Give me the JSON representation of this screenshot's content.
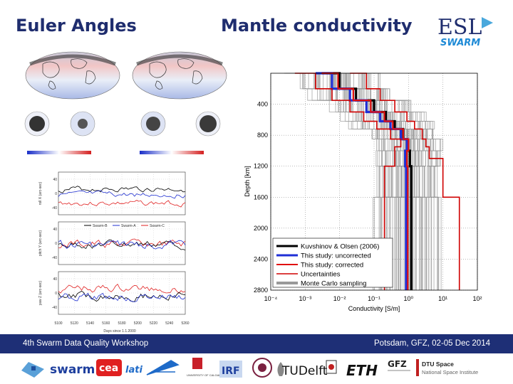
{
  "slide": {
    "left_title": "Euler Angles",
    "right_title": "Mantle conductivity",
    "logo_top": "ESL",
    "logo_bottom": "SWARM"
  },
  "timeseries": {
    "legend": [
      "Swarm-B",
      "Swarm-A",
      "Swarm-C"
    ],
    "xlabel": "Days since 1.1.2000",
    "xticks": [
      "5100",
      "5120",
      "5140",
      "5160",
      "5180",
      "5200",
      "5220",
      "5240",
      "5260"
    ],
    "panels": [
      {
        "ylabel": "roll X (arc-sec)",
        "yticks": [
          "40",
          "0",
          "-40"
        ]
      },
      {
        "ylabel": "pitch Y (arc-sec)",
        "yticks": [
          "40",
          "0",
          "-40"
        ]
      },
      {
        "ylabel": "yaw Z (arc-sec)",
        "yticks": [
          "40",
          "0",
          "-40"
        ]
      }
    ]
  },
  "chart_data": {
    "type": "line",
    "xlabel": "Conductivity [S/m]",
    "ylabel": "Depth [km]",
    "xscale": "log",
    "xlim": [
      0.0001,
      100
    ],
    "xtick_labels": [
      "10⁻⁴",
      "10⁻³",
      "10⁻²",
      "10⁻¹",
      "10⁰",
      "10¹",
      "10²"
    ],
    "ylim": [
      0,
      2800
    ],
    "yticks": [
      400,
      800,
      1200,
      1600,
      2000,
      2400,
      2800
    ],
    "legend_position": "bottom-left",
    "series": [
      {
        "name": "Kuvshinov & Olsen (2006)",
        "color": "#000000",
        "x": [
          0.003,
          0.01,
          0.03,
          0.1,
          0.22,
          0.4,
          0.7,
          0.9,
          1.1,
          1.2,
          1.2
        ],
        "y": [
          0,
          200,
          350,
          500,
          620,
          720,
          850,
          1000,
          1200,
          1600,
          2800
        ]
      },
      {
        "name": "This study: uncorrected",
        "color": "#1f2fd6",
        "x": [
          0.002,
          0.006,
          0.02,
          0.06,
          0.15,
          0.3,
          0.6,
          0.9,
          0.8,
          0.85,
          0.85
        ],
        "y": [
          0,
          200,
          350,
          500,
          620,
          720,
          850,
          1000,
          1200,
          1600,
          2800
        ]
      },
      {
        "name": "This study: corrected",
        "color": "#e01010",
        "x": [
          0.003,
          0.009,
          0.025,
          0.08,
          0.2,
          0.35,
          0.7,
          1.0,
          0.9,
          0.95,
          0.95
        ],
        "y": [
          0,
          200,
          350,
          500,
          620,
          720,
          850,
          1000,
          1200,
          1600,
          2800
        ]
      },
      {
        "name": "Uncertainties",
        "color": "#d00000",
        "x": [
          0.02,
          0.06,
          0.15,
          0.4,
          0.9,
          1.5,
          2.5,
          3.2,
          4,
          10,
          30,
          30
        ],
        "y": [
          0,
          200,
          350,
          500,
          620,
          720,
          850,
          950,
          1100,
          1600,
          2200,
          2800
        ]
      },
      {
        "name": "Uncertainties",
        "color": "#d00000",
        "x": [
          0.0005,
          0.002,
          0.006,
          0.02,
          0.05,
          0.12,
          0.3,
          0.6,
          0.4,
          0.2,
          0.2
        ],
        "y": [
          0,
          200,
          350,
          500,
          620,
          720,
          850,
          950,
          1200,
          1800,
          2800
        ]
      },
      {
        "name": "Monte Carlo sampling",
        "color": "#999999",
        "x": [],
        "y": []
      }
    ]
  },
  "footer": {
    "left": "4th Swarm Data Quality Workshop",
    "right": "Potsdam, GFZ, 02-05 Dec 2014"
  },
  "partners": {
    "swarm": "swarm",
    "cea": "cea",
    "lati": "lati",
    "calgary": "UNIVERSITY OF CALGARY",
    "irf": "IRF",
    "tudelft": "TUDelft",
    "eth": "ETH",
    "gfz": "GFZ",
    "dtu1": "DTU Space",
    "dtu2": "National Space Institute"
  }
}
